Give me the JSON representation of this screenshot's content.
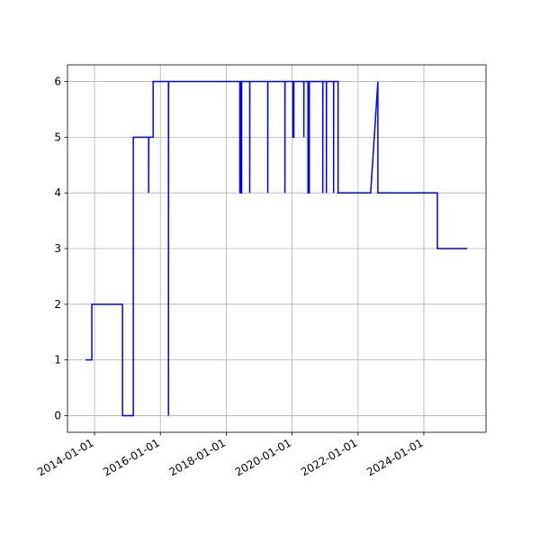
{
  "chart_data": {
    "type": "line",
    "x": [
      "2013-09-23",
      "2013-12-02",
      "2013-12-02",
      "2014-11-07",
      "2014-11-07",
      "2015-03-07",
      "2015-03-07",
      "2015-08-24",
      "2015-08-24",
      "2015-08-25",
      "2015-10-13",
      "2015-10-13",
      "2016-03-31",
      "2016-03-31",
      "2016-04-01",
      "2018-05-31",
      "2018-05-31",
      "2018-06-01",
      "2018-06-10",
      "2018-06-10",
      "2018-06-20",
      "2018-06-20",
      "2018-09-18",
      "2018-09-18",
      "2018-09-19",
      "2019-04-06",
      "2019-04-06",
      "2019-04-07",
      "2019-10-13",
      "2019-10-13",
      "2019-10-14",
      "2020-01-10",
      "2020-01-10",
      "2020-01-20",
      "2020-01-20",
      "2020-05-10",
      "2020-05-10",
      "2020-05-11",
      "2020-06-25",
      "2020-06-25",
      "2020-07-10",
      "2020-07-10",
      "2020-12-06",
      "2020-12-06",
      "2020-12-07",
      "2021-01-15",
      "2021-01-15",
      "2021-01-16",
      "2021-04-05",
      "2021-04-05",
      "2021-04-06",
      "2021-05-25",
      "2021-05-25",
      "2022-05-21",
      "2022-08-09",
      "2022-08-09",
      "2024-05-30",
      "2024-05-30",
      "2025-04-26"
    ],
    "values": [
      1,
      1,
      2,
      2,
      0,
      0,
      5,
      5,
      4,
      5,
      5,
      6,
      6,
      0,
      6,
      6,
      4,
      6,
      6,
      4,
      4,
      6,
      6,
      4,
      6,
      6,
      4,
      6,
      6,
      4,
      6,
      6,
      5,
      5,
      6,
      6,
      5,
      6,
      6,
      4,
      4,
      6,
      6,
      4,
      6,
      6,
      4,
      6,
      6,
      4,
      6,
      6,
      4,
      4,
      6,
      4,
      4,
      3,
      3
    ],
    "color": "#0000ff",
    "xlim": [
      "2013-03-07",
      "2025-11-20"
    ],
    "xticks": [
      "2014-01-01",
      "2016-01-01",
      "2018-01-01",
      "2020-01-01",
      "2022-01-01",
      "2024-01-01"
    ],
    "ylim": [
      -0.3,
      6.3
    ],
    "yticks": [
      0,
      1,
      2,
      3,
      4,
      5,
      6
    ],
    "grid": true
  }
}
